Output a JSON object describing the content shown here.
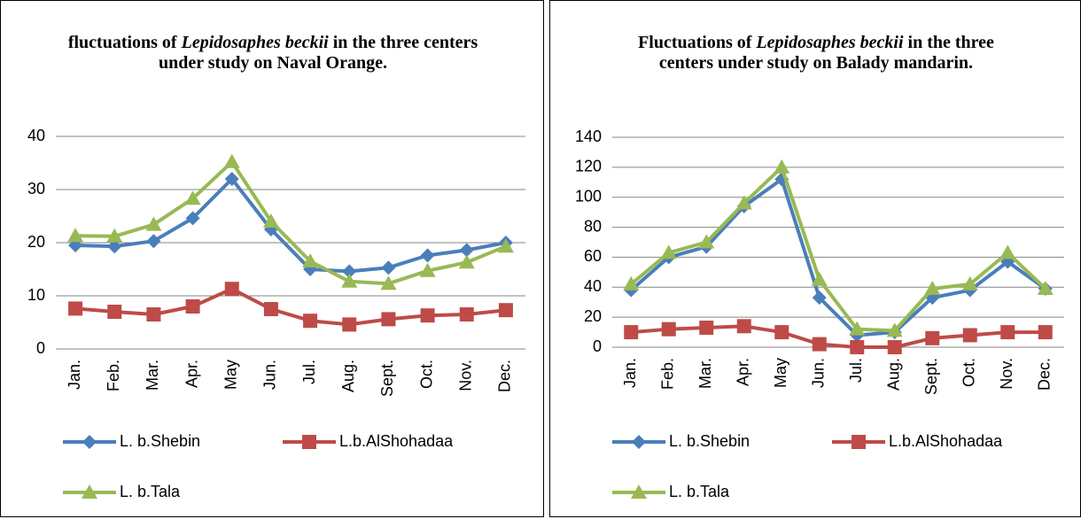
{
  "chart_data": [
    {
      "type": "line",
      "title": [
        "fluctuations of ",
        "Lepidosaphes beckii",
        " in the three centers under study on Naval Orange."
      ],
      "categories": [
        "Jan.",
        "Feb.",
        "Mar.",
        "Apr.",
        "May",
        "Jun.",
        "Jul.",
        "Aug.",
        "Sept.",
        "Oct.",
        "Nov.",
        "Dec."
      ],
      "ylim": [
        0,
        40
      ],
      "yticks": [
        0,
        10,
        20,
        30,
        40
      ],
      "grid": true,
      "legend": "bottom",
      "series": [
        {
          "name": "L. b.Shebin",
          "color": "#4a7ebb",
          "marker": "diamond",
          "values": [
            19.5,
            19.3,
            20.3,
            24.6,
            32,
            22.5,
            15,
            14.6,
            15.3,
            17.6,
            18.6,
            20
          ]
        },
        {
          "name": "L.b.AlShohadaa",
          "color": "#be4b48",
          "marker": "square",
          "values": [
            7.6,
            7,
            6.5,
            8,
            11.3,
            7.5,
            5.3,
            4.6,
            5.6,
            6.3,
            6.5,
            7.3
          ]
        },
        {
          "name": "L. b.Tala",
          "color": "#98b954",
          "marker": "triangle",
          "values": [
            21.3,
            21.2,
            23.4,
            28.3,
            35.2,
            24,
            16.5,
            12.7,
            12.3,
            14.7,
            16.3,
            19.3
          ]
        }
      ]
    },
    {
      "type": "line",
      "title": [
        "Fluctuations of ",
        "Lepidosaphes beckii",
        " in the three centers under study on Balady mandarin."
      ],
      "categories": [
        "Jan.",
        "Feb.",
        "Mar.",
        "Apr.",
        "May",
        "Jun.",
        "Jul.",
        "Aug.",
        "Sept.",
        "Oct.",
        "Nov.",
        "Dec."
      ],
      "ylim": [
        0,
        140
      ],
      "yticks": [
        0,
        20,
        40,
        60,
        80,
        100,
        120,
        140
      ],
      "grid": true,
      "legend": "bottom",
      "series": [
        {
          "name": "L. b.Shebin",
          "color": "#4a7ebb",
          "marker": "diamond",
          "values": [
            38,
            60,
            67,
            94,
            112,
            33,
            8,
            10,
            33,
            38,
            57,
            39
          ]
        },
        {
          "name": "L.b.AlShohadaa",
          "color": "#be4b48",
          "marker": "square",
          "values": [
            10,
            12,
            13,
            14,
            10,
            2,
            0,
            0,
            6,
            8,
            10,
            10
          ]
        },
        {
          "name": "L. b.Tala",
          "color": "#98b954",
          "marker": "triangle",
          "values": [
            42,
            63,
            70,
            96,
            120,
            45,
            12,
            11,
            39,
            42,
            63,
            39
          ]
        }
      ]
    }
  ]
}
